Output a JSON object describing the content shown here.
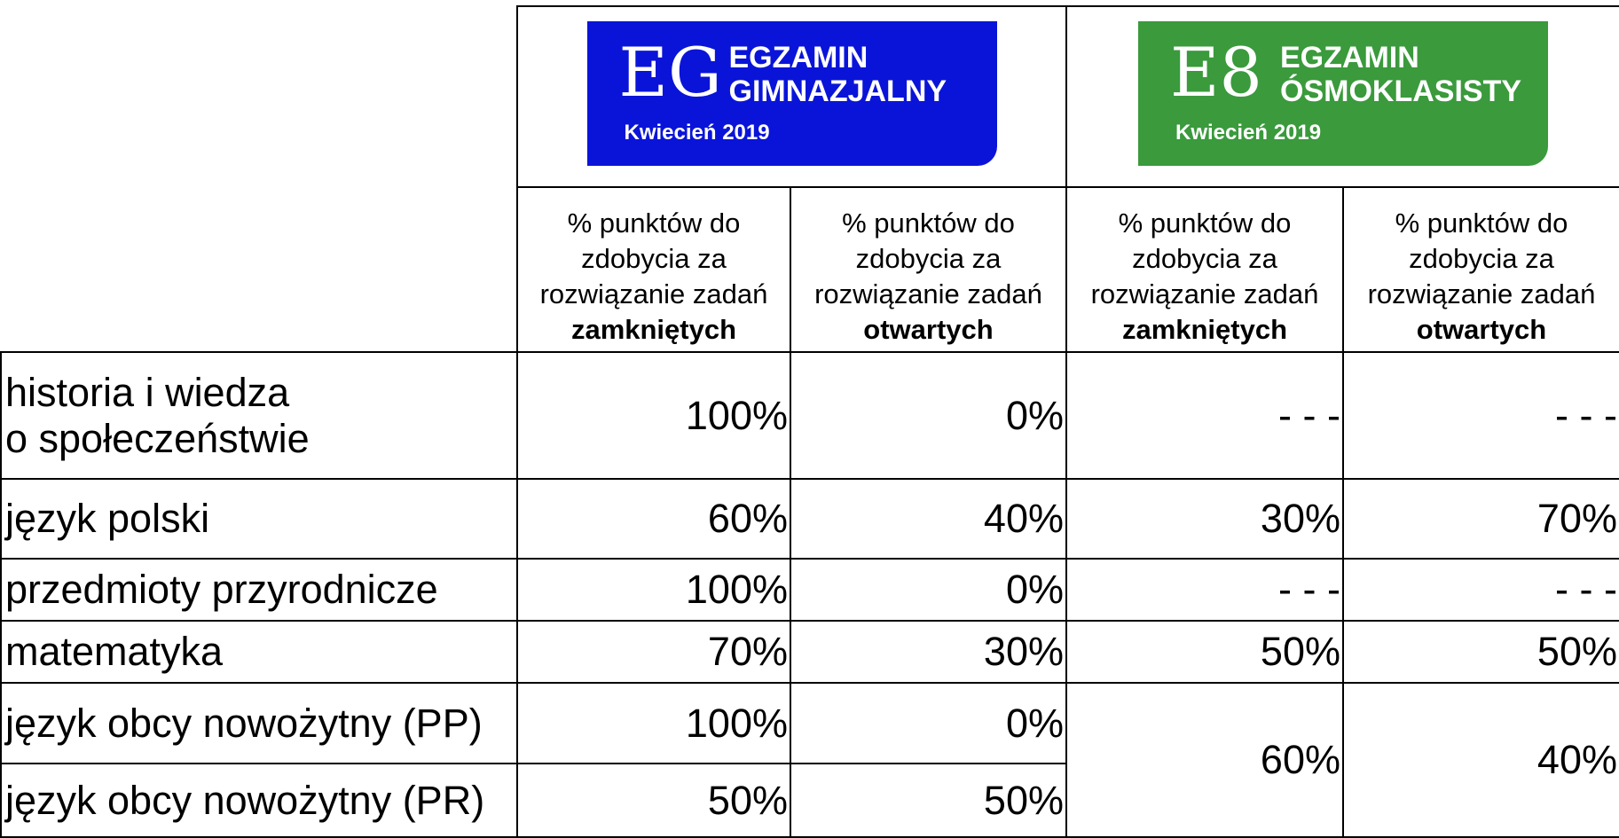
{
  "logos": [
    {
      "mark": "EG",
      "title": [
        "EGZAMIN",
        "GIMNAZJALNY"
      ],
      "date": "Kwiecień 2019",
      "color": "#0a14d8"
    },
    {
      "mark": "E8",
      "title": [
        "EGZAMIN",
        "ÓSMOKLASISTY"
      ],
      "date": "Kwiecień 2019",
      "color": "#3a9a3c"
    }
  ],
  "table": {
    "headers": [
      {
        "lines": [
          "% punktów do",
          "zdobycia za",
          "rozwiązanie zadań"
        ],
        "bold": "zamkniętych"
      },
      {
        "lines": [
          "% punktów do",
          "zdobycia za",
          "rozwiązanie zadań"
        ],
        "bold": "otwartych"
      },
      {
        "lines": [
          "% punktów do",
          "zdobycia za",
          "rozwiązanie zadań"
        ],
        "bold": "zamkniętych"
      },
      {
        "lines": [
          "% punktów do",
          "zdobycia za",
          "rozwiązanie zadań"
        ],
        "bold": "otwartych"
      }
    ],
    "rows": [
      {
        "label": [
          "historia i wiedza",
          "o społeczeństwie"
        ],
        "eg": [
          "100%",
          "0%"
        ],
        "e8": [
          "- - -",
          "- - -"
        ]
      },
      {
        "label": [
          "język polski"
        ],
        "eg": [
          "60%",
          "40%"
        ],
        "e8": [
          "30%",
          "70%"
        ]
      },
      {
        "label": [
          "przedmioty przyrodnicze"
        ],
        "eg": [
          "100%",
          "0%"
        ],
        "e8": [
          "- - -",
          "- - -"
        ]
      },
      {
        "label": [
          "matematyka"
        ],
        "eg": [
          "70%",
          "30%"
        ],
        "e8": [
          "50%",
          "50%"
        ]
      },
      {
        "label": [
          "język obcy nowożytny (PP)"
        ],
        "eg": [
          "100%",
          "0%"
        ],
        "e8": [
          "60%",
          "40%"
        ]
      },
      {
        "label": [
          "język obcy nowożytny (PR)"
        ],
        "eg": [
          "50%",
          "50%"
        ]
      }
    ]
  }
}
